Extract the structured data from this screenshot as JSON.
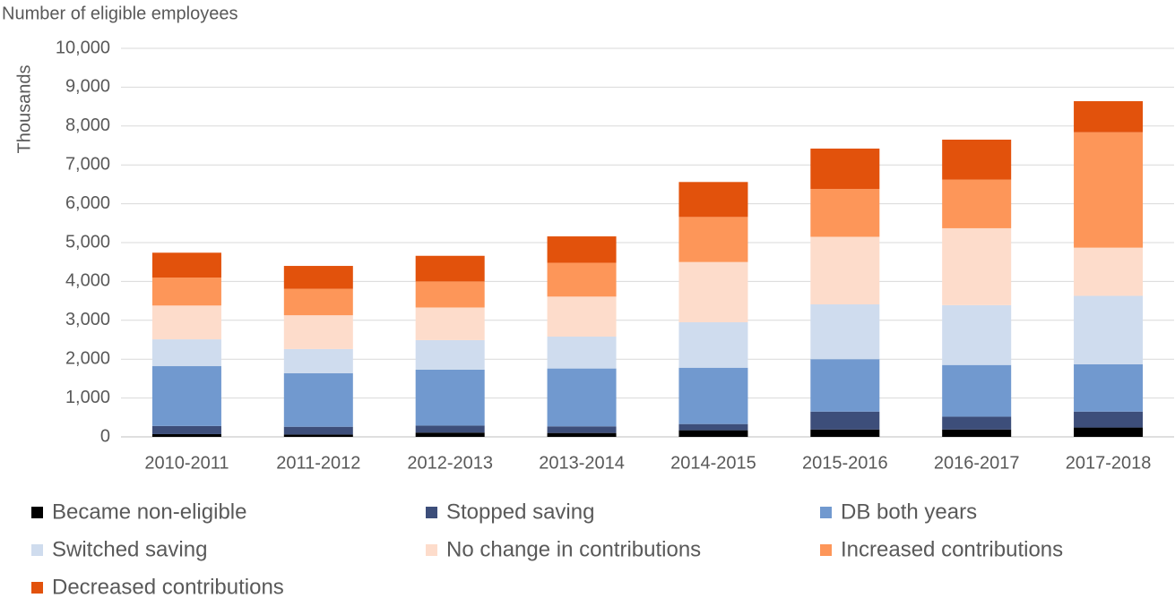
{
  "chart_data": {
    "type": "stacked_bar",
    "title": "Number of eligible employees",
    "y_label": "Thousands",
    "categories": [
      "2010-2011",
      "2011-2012",
      "2012-2013",
      "2013-2014",
      "2014-2015",
      "2015-2016",
      "2016-2017",
      "2017-2018"
    ],
    "series": [
      {
        "name": "Became non-eligible",
        "color": "#000000",
        "values": [
          70,
          60,
          110,
          100,
          170,
          190,
          190,
          240
        ]
      },
      {
        "name": "Stopped saving",
        "color": "#3d4e7a",
        "values": [
          210,
          200,
          180,
          170,
          160,
          460,
          330,
          410
        ]
      },
      {
        "name": "DB both years",
        "color": "#7199cf",
        "values": [
          1540,
          1380,
          1440,
          1490,
          1450,
          1350,
          1330,
          1220
        ]
      },
      {
        "name": "Switched saving",
        "color": "#cfdcee",
        "values": [
          690,
          620,
          760,
          820,
          1170,
          1410,
          1540,
          1760
        ]
      },
      {
        "name": "No change in contributions",
        "color": "#fddccb",
        "values": [
          870,
          870,
          840,
          1030,
          1550,
          1740,
          1980,
          1240
        ]
      },
      {
        "name": "Increased contributions",
        "color": "#fd9659",
        "values": [
          720,
          680,
          670,
          870,
          1160,
          1230,
          1250,
          2970
        ]
      },
      {
        "name": "Decreased contributions",
        "color": "#e2520c",
        "values": [
          640,
          590,
          660,
          680,
          900,
          1040,
          1030,
          800
        ]
      }
    ],
    "ylim": [
      0,
      10000
    ],
    "yticks": [
      0,
      {
        "value": 1000,
        "label": "1,000"
      },
      {
        "value": 2000,
        "label": "2,000"
      },
      {
        "value": 3000,
        "label": "3,000"
      },
      {
        "value": 4000,
        "label": "4,000"
      },
      {
        "value": 5000,
        "label": "5,000"
      },
      {
        "value": 6000,
        "label": "6,000"
      },
      {
        "value": 7000,
        "label": "7,000"
      },
      {
        "value": 8000,
        "label": "8,000"
      },
      {
        "value": 9000,
        "label": "9,000"
      },
      {
        "value": 10000,
        "label": "10,000"
      }
    ],
    "grid": true
  }
}
